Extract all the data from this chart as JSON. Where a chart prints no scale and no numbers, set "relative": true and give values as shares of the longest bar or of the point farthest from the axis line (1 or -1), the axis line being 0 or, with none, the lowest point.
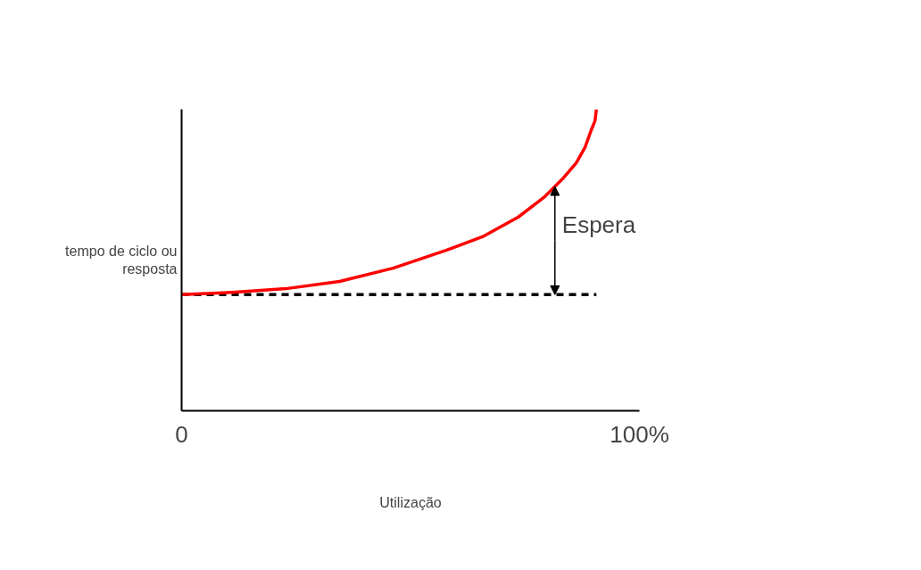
{
  "chart_data": {
    "type": "line",
    "relative": true,
    "xlabel": "Utilização",
    "ylabel": "tempo de ciclo ou resposta",
    "xlim": [
      0,
      100
    ],
    "xticks": [
      0,
      {
        "value": 100,
        "label": "100%"
      }
    ],
    "marker": "none",
    "series": [
      {
        "color": "#ff0000",
        "line_style": "solid",
        "x": [
          0,
          11.1,
          22.8,
          34.5,
          46.2,
          57.9,
          65.7,
          73.5,
          79.3,
          83.2,
          86.2,
          88.1,
          89.5,
          90.3,
          90.6
        ],
        "values": [
          0.385,
          0.393,
          0.405,
          0.429,
          0.473,
          0.533,
          0.577,
          0.642,
          0.71,
          0.769,
          0.822,
          0.873,
          0.932,
          0.962,
          1.0
        ]
      },
      {
        "color": "#000000",
        "line_style": "dashed",
        "x": [
          0,
          90.6
        ],
        "values": [
          0.385,
          0.385
        ]
      }
    ],
    "annotations": [
      "Espera"
    ]
  }
}
